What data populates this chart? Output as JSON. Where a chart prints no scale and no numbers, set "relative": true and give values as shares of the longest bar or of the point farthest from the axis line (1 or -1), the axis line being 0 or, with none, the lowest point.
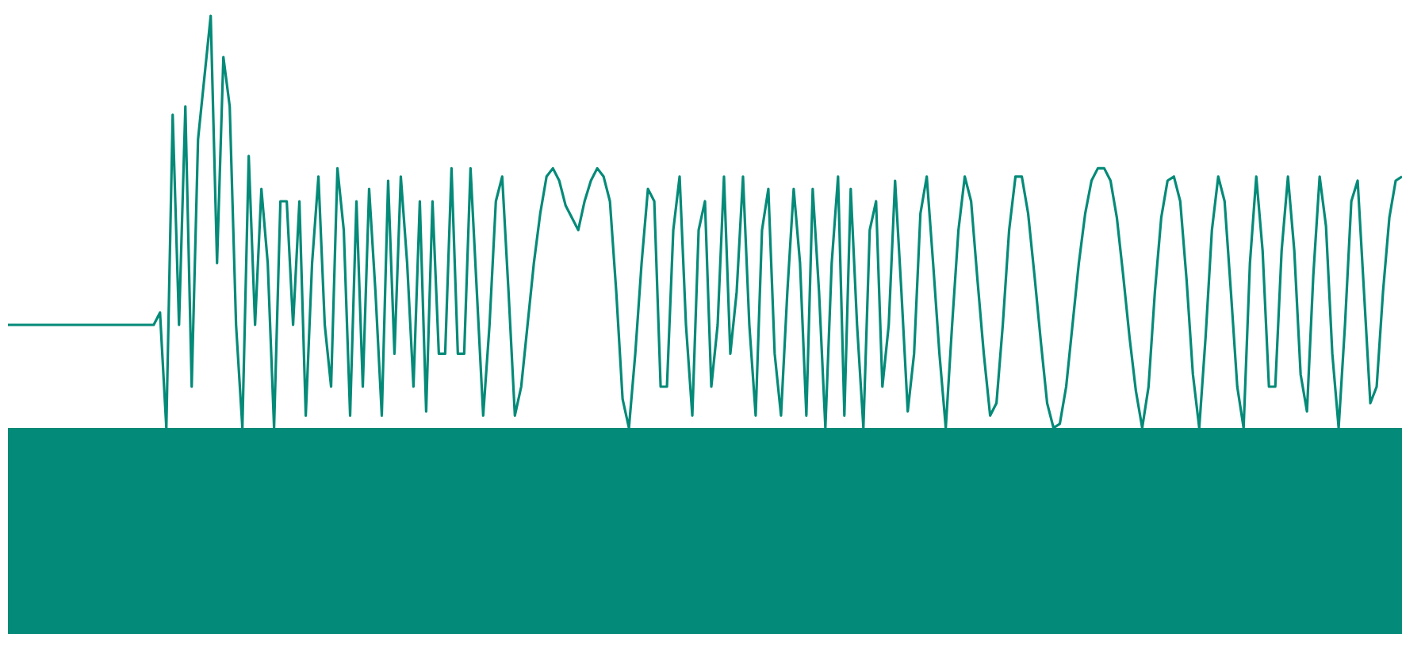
{
  "chart_data": {
    "type": "line",
    "relative": true,
    "marker": "none",
    "line_style": "solid",
    "categories": [
      null,
      null,
      null,
      null,
      null,
      null,
      null,
      null,
      null,
      null,
      null,
      null,
      null,
      null,
      null,
      null,
      null,
      null,
      null,
      null,
      null,
      null,
      null,
      null,
      null,
      null,
      null,
      null,
      null,
      null,
      null,
      null,
      null,
      null,
      null,
      null,
      null,
      null,
      null,
      null,
      null,
      null,
      null,
      null,
      null,
      null,
      null,
      null,
      null,
      null,
      null,
      null,
      null,
      null,
      null,
      null,
      null,
      null,
      null,
      null,
      null,
      null,
      null,
      null,
      null,
      null,
      null,
      null,
      null,
      null,
      null,
      null,
      null,
      null,
      null,
      null,
      null,
      null,
      null,
      null,
      null,
      null,
      null,
      null,
      null,
      null,
      null,
      null,
      null,
      null,
      null,
      null,
      null,
      null,
      null,
      null,
      null,
      null,
      null,
      null,
      null,
      null,
      null,
      null,
      null,
      null,
      null,
      null,
      null,
      null,
      null,
      null,
      null,
      null,
      null,
      null,
      null,
      null,
      null,
      null,
      null,
      null,
      null,
      null,
      null,
      null,
      null,
      null,
      null,
      null,
      null,
      null,
      null,
      null,
      null,
      null,
      null,
      null,
      null,
      null,
      null,
      null,
      null,
      null,
      null,
      null,
      null,
      null,
      null,
      null,
      null,
      null,
      null,
      null,
      null,
      null,
      null,
      null,
      null,
      null,
      null,
      null,
      null,
      null,
      null,
      null,
      null,
      null,
      null,
      null,
      null,
      null,
      null,
      null,
      null,
      null,
      null,
      null,
      null,
      null,
      null,
      null,
      null,
      null,
      null,
      null,
      null,
      null,
      null,
      null,
      null,
      null,
      null,
      null,
      null,
      null,
      null,
      null,
      null,
      null,
      null,
      null,
      null,
      null,
      null,
      null,
      null,
      null,
      null,
      null,
      null,
      null,
      null,
      null,
      null,
      null,
      null,
      null,
      null,
      null,
      null
    ],
    "series": [
      {
        "color": "#048a78",
        "values": [
          0.25,
          0.25,
          0.25,
          0.25,
          0.25,
          0.25,
          0.25,
          0.25,
          0.25,
          0.25,
          0.25,
          0.25,
          0.25,
          0.25,
          0.25,
          0.25,
          0.25,
          0.25,
          0.25,
          0.25,
          0.25,
          0.25,
          0.25,
          0.25,
          0.28,
          0,
          0.76,
          0.25,
          0.78,
          0.1,
          0.7,
          0.85,
          1,
          0.4,
          0.9,
          0.78,
          0.25,
          0,
          0.66,
          0.25,
          0.58,
          0.4,
          0,
          0.55,
          0.55,
          0.25,
          0.55,
          0.03,
          0.4,
          0.61,
          0.25,
          0.1,
          0.63,
          0.48,
          0.03,
          0.55,
          0.1,
          0.58,
          0.33,
          0.03,
          0.6,
          0.18,
          0.61,
          0.4,
          0.1,
          0.55,
          0.04,
          0.55,
          0.18,
          0.18,
          0.63,
          0.18,
          0.18,
          0.63,
          0.33,
          0.03,
          0.25,
          0.55,
          0.61,
          0.33,
          0.03,
          0.1,
          0.25,
          0.4,
          0.52,
          0.61,
          0.63,
          0.6,
          0.54,
          0.51,
          0.48,
          0.55,
          0.6,
          0.63,
          0.61,
          0.55,
          0.33,
          0.07,
          0,
          0.18,
          0.4,
          0.58,
          0.55,
          0.1,
          0.1,
          0.48,
          0.61,
          0.25,
          0.03,
          0.48,
          0.55,
          0.1,
          0.25,
          0.61,
          0.18,
          0.33,
          0.61,
          0.25,
          0.03,
          0.48,
          0.58,
          0.18,
          0.03,
          0.33,
          0.58,
          0.4,
          0.03,
          0.58,
          0.33,
          0,
          0.4,
          0.61,
          0.03,
          0.58,
          0.25,
          0,
          0.48,
          0.55,
          0.1,
          0.25,
          0.6,
          0.33,
          0.04,
          0.18,
          0.52,
          0.61,
          0.4,
          0.18,
          0,
          0.25,
          0.48,
          0.61,
          0.55,
          0.36,
          0.18,
          0.03,
          0.06,
          0.25,
          0.48,
          0.61,
          0.61,
          0.52,
          0.37,
          0.21,
          0.06,
          0,
          0.01,
          0.1,
          0.25,
          0.4,
          0.52,
          0.6,
          0.63,
          0.63,
          0.6,
          0.51,
          0.37,
          0.22,
          0.09,
          0,
          0.1,
          0.33,
          0.51,
          0.6,
          0.61,
          0.55,
          0.36,
          0.13,
          0,
          0.22,
          0.48,
          0.61,
          0.55,
          0.33,
          0.1,
          0,
          0.4,
          0.61,
          0.43,
          0.1,
          0.1,
          0.43,
          0.61,
          0.43,
          0.13,
          0.04,
          0.37,
          0.61,
          0.49,
          0.18,
          0,
          0.25,
          0.55,
          0.6,
          0.33,
          0.06,
          0.1,
          0.33,
          0.51,
          0.6,
          0.61
        ]
      }
    ]
  }
}
